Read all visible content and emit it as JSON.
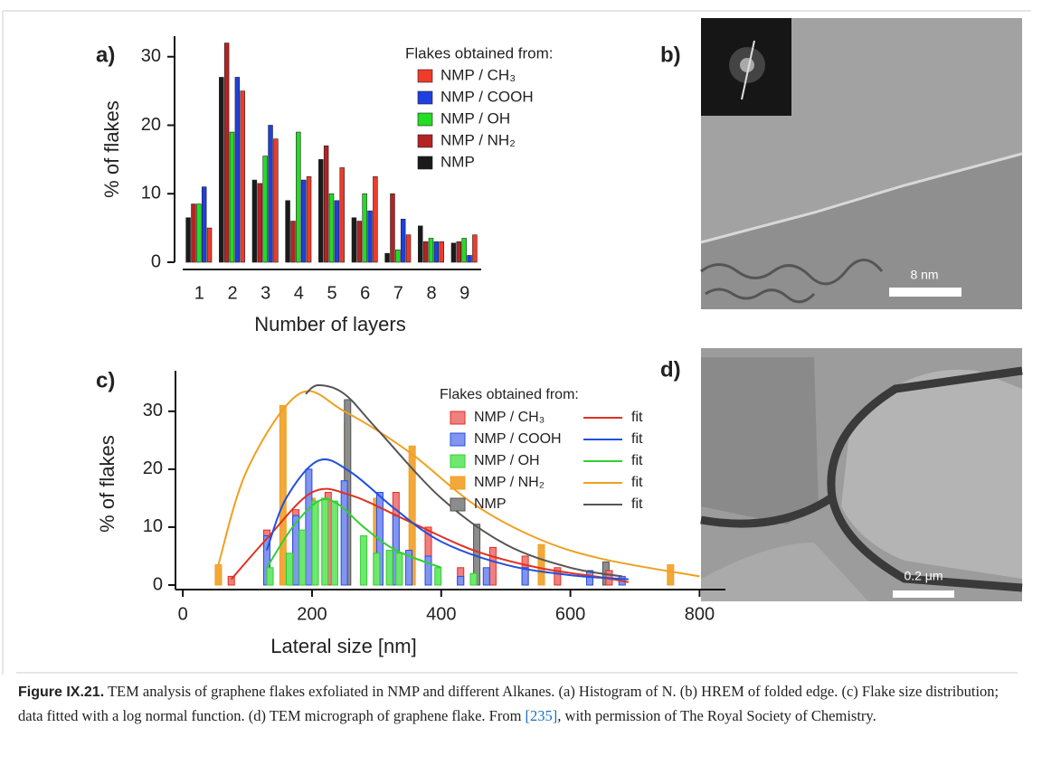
{
  "chart_data": [
    {
      "type": "bar",
      "panel": "a)",
      "legend_title": "Flakes obtained from:",
      "xlabel": "Number of layers",
      "ylabel": "% of flakes",
      "categories": [
        "1",
        "2",
        "3",
        "4",
        "5",
        "6",
        "7",
        "8",
        "9"
      ],
      "series": [
        {
          "name": "NMP",
          "color": "#1a1a1a",
          "values": [
            6.5,
            27,
            12,
            9,
            15,
            6.5,
            1.3,
            5.3,
            2.8
          ]
        },
        {
          "name": "NMP / NH₂",
          "color": "#b52222",
          "values": [
            8.5,
            32,
            11.5,
            6,
            17,
            6,
            10,
            3,
            3
          ]
        },
        {
          "name": "NMP / OH",
          "color": "#22dd22",
          "values": [
            8.5,
            19,
            15.5,
            19,
            10,
            10,
            1.8,
            3.5,
            3.5
          ]
        },
        {
          "name": "NMP / COOH",
          "color": "#1f3fe0",
          "values": [
            11,
            27,
            20,
            12,
            9,
            7.5,
            6.3,
            3,
            1
          ]
        },
        {
          "name": "NMP / CH₃",
          "color": "#f03a2a",
          "values": [
            5,
            25,
            18,
            12.5,
            13.8,
            12.5,
            4,
            3,
            4
          ]
        }
      ],
      "ylim": [
        0,
        33
      ],
      "yticks": [
        0,
        10,
        20,
        30
      ]
    },
    {
      "type": "bar_fit",
      "panel": "c)",
      "legend_title": "Flakes obtained from:",
      "xlabel": "Lateral size [nm]",
      "ylabel": "% of flakes",
      "series": [
        {
          "name": "NMP / CH₃",
          "color": "#f08080",
          "line_color": "#e03020",
          "fit_label": "fit",
          "x": [
            75,
            130,
            175,
            225,
            330,
            380,
            430,
            480,
            530,
            580,
            660
          ],
          "values": [
            1.5,
            9.5,
            13,
            16,
            16,
            10,
            3,
            6.5,
            5,
            3,
            2.5
          ],
          "fit_x": [
            75,
            130,
            200,
            260,
            350,
            450,
            550,
            650,
            690
          ],
          "fit_values": [
            1,
            8,
            16,
            15.5,
            11,
            6,
            3,
            1.3,
            0.5
          ]
        },
        {
          "name": "NMP / COOH",
          "color": "#8394f0",
          "line_color": "#2050e0",
          "fit_label": "fit",
          "x": [
            130,
            175,
            195,
            250,
            305,
            330,
            350,
            380,
            430,
            470,
            530,
            630,
            680
          ],
          "values": [
            8.5,
            12,
            20,
            18,
            16,
            12,
            6,
            5,
            1.5,
            3,
            3,
            2.5,
            1.5
          ],
          "fit_x": [
            130,
            160,
            210,
            260,
            330,
            400,
            500,
            600,
            690
          ],
          "fit_values": [
            6,
            15,
            21.5,
            19.5,
            13,
            7.5,
            3.5,
            1.7,
            1
          ]
        },
        {
          "name": "NMP / OH",
          "color": "#6ee86e",
          "line_color": "#30d030",
          "fit_label": "fit",
          "x": [
            135,
            165,
            185,
            205,
            220,
            235,
            280,
            300,
            320,
            335,
            395,
            450
          ],
          "values": [
            3,
            5.5,
            9.5,
            14.5,
            15,
            14.5,
            8.5,
            5.5,
            6,
            5.5,
            3,
            2
          ],
          "fit_x": [
            130,
            170,
            210,
            240,
            280,
            330,
            400
          ],
          "fit_values": [
            3,
            10,
            14.5,
            14,
            10,
            6,
            3
          ]
        },
        {
          "name": "NMP / NH₂",
          "color": "#f2a83a",
          "line_color": "#f0a020",
          "fit_label": "fit",
          "x": [
            55,
            155,
            200,
            255,
            300,
            355,
            455,
            555,
            655,
            755
          ],
          "values": [
            3.5,
            31,
            15,
            28,
            15,
            24,
            10.5,
            7,
            3.5,
            3.5
          ],
          "fit_x": [
            55,
            100,
            180,
            250,
            350,
            450,
            550,
            650,
            800
          ],
          "fit_values": [
            3.5,
            20,
            33,
            30,
            23,
            14,
            8,
            4.5,
            1.5
          ]
        },
        {
          "name": "NMP",
          "color": "#8c8c8c",
          "line_color": "#555555",
          "fit_label": "fit",
          "x": [
            255,
            455,
            655
          ],
          "values": [
            32,
            10.5,
            4
          ],
          "fit_x": [
            190,
            210,
            250,
            300,
            400,
            500,
            600,
            680
          ],
          "fit_values": [
            33,
            34.5,
            33,
            27,
            15,
            7,
            3,
            1.5
          ]
        }
      ],
      "xlim": [
        -10,
        840
      ],
      "xticks": [
        0,
        200,
        400,
        600,
        800
      ],
      "ylim": [
        0,
        37
      ],
      "yticks": [
        0,
        10,
        20,
        30
      ]
    }
  ],
  "panels": {
    "b": {
      "label": "b)",
      "scale": "8 nm"
    },
    "d": {
      "label": "d)",
      "scale": "0.2 μm"
    }
  },
  "caption": {
    "label": "Figure IX.21.",
    "text_before": " TEM analysis of graphene flakes exfoliated in NMP and different Alkanes. (a) Histogram of N. (b) HREM of folded edge. (c) Flake size distribution; data fitted with a log normal function. (d) TEM micrograph of graphene flake. From ",
    "ref": "[235]",
    "text_after": ", with permission of The Royal Society of Chemistry."
  }
}
